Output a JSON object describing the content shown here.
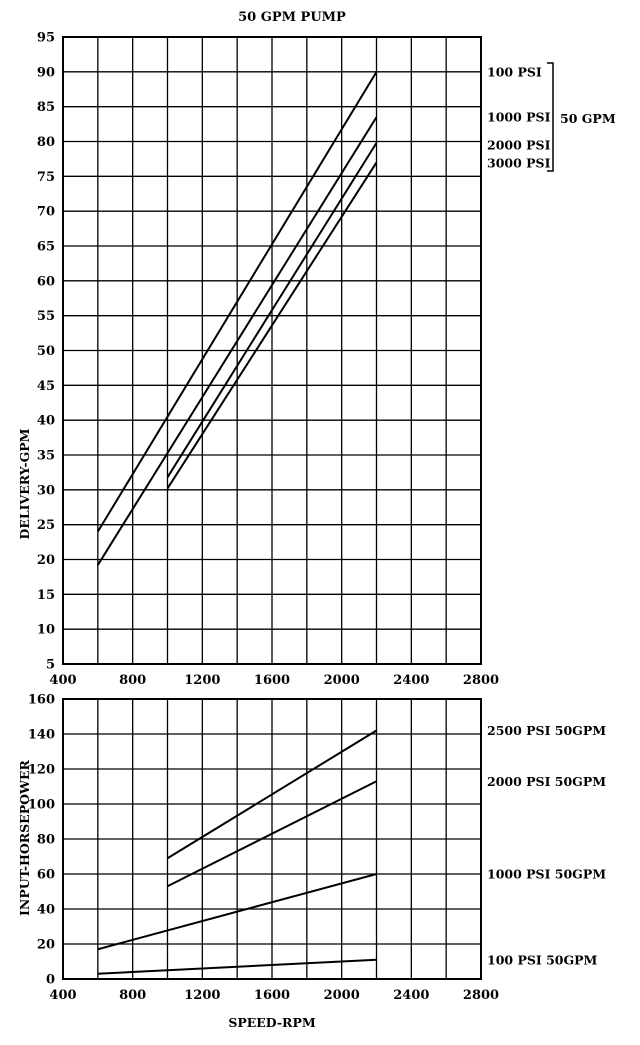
{
  "chart_data": [
    {
      "type": "line",
      "title": "50 GPM PUMP",
      "xlabel": "",
      "ylabel": "DELIVERY-GPM",
      "xlim": [
        400,
        2800
      ],
      "ylim": [
        5,
        95
      ],
      "xticks": [
        400,
        800,
        1200,
        1600,
        2000,
        2400,
        2800
      ],
      "yticks": [
        5,
        10,
        15,
        20,
        25,
        30,
        35,
        40,
        45,
        50,
        55,
        60,
        65,
        70,
        75,
        80,
        85,
        90,
        95
      ],
      "grid": true,
      "series": [
        {
          "name": "100 PSI",
          "x": [
            600,
            2200
          ],
          "y": [
            24,
            90
          ]
        },
        {
          "name": "1000 PSI",
          "x": [
            600,
            2200
          ],
          "y": [
            19.2,
            83.5
          ]
        },
        {
          "name": "2000 PSI",
          "x": [
            1000,
            2200
          ],
          "y": [
            31.8,
            79.8
          ]
        },
        {
          "name": "3000 PSI",
          "x": [
            1000,
            2200
          ],
          "y": [
            30.2,
            77
          ]
        }
      ],
      "bracket_label": "50 GPM",
      "legend": "right"
    },
    {
      "type": "line",
      "title": "",
      "xlabel": "SPEED-RPM",
      "ylabel": "INPUT-HORSEPOWER",
      "xlim": [
        400,
        2800
      ],
      "ylim": [
        0,
        160
      ],
      "xticks": [
        400,
        800,
        1200,
        1600,
        2000,
        2400,
        2800
      ],
      "yticks": [
        0,
        20,
        40,
        60,
        80,
        100,
        120,
        140,
        160
      ],
      "grid": true,
      "series": [
        {
          "name": "2500 PSI   50GPM",
          "x": [
            1000,
            2200
          ],
          "y": [
            69,
            142
          ]
        },
        {
          "name": "2000 PSI   50GPM",
          "x": [
            1000,
            2200
          ],
          "y": [
            53,
            113
          ]
        },
        {
          "name": "1000 PSI   50GPM",
          "x": [
            600,
            2200
          ],
          "y": [
            17,
            60
          ]
        },
        {
          "name": "100 PSI   50GPM",
          "x": [
            600,
            2200
          ],
          "y": [
            3,
            11
          ]
        }
      ],
      "legend": "right"
    }
  ]
}
